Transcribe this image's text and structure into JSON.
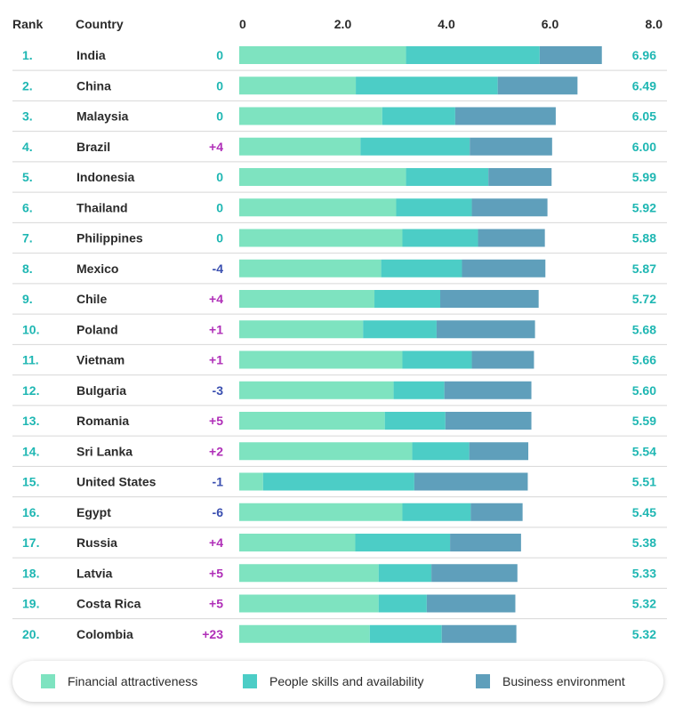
{
  "chart_data": {
    "type": "bar",
    "stacked": true,
    "orientation": "horizontal",
    "headers": {
      "rank": "Rank",
      "country": "Country"
    },
    "xlim": [
      0,
      8.0
    ],
    "x_ticks": [
      "0",
      "2.0",
      "4.0",
      "6.0",
      "8.0"
    ],
    "colors": {
      "financial": "#7ee3c0",
      "people": "#4ccdc6",
      "business": "#5f9fbb",
      "rank_text": "#1fb7b3",
      "score_text": "#1fb7b3",
      "change_positive": "#b02fb8",
      "change_negative": "#3a4fb0",
      "change_zero": "#1fb7b3"
    },
    "series": [
      {
        "name": "Financial attractiveness",
        "key": "financial"
      },
      {
        "name": "People skills and availability",
        "key": "people"
      },
      {
        "name": "Business environment",
        "key": "business"
      }
    ],
    "rows": [
      {
        "rank": "1.",
        "country": "India",
        "change": "0",
        "score": "6.96",
        "values": [
          3.22,
          2.58,
          1.2
        ]
      },
      {
        "rank": "2.",
        "country": "China",
        "change": "0",
        "score": "6.49",
        "values": [
          2.25,
          2.74,
          1.54
        ]
      },
      {
        "rank": "3.",
        "country": "Malaysia",
        "change": "0",
        "score": "6.05",
        "values": [
          2.76,
          1.41,
          1.94
        ]
      },
      {
        "rank": "4.",
        "country": "Brazil",
        "change": "+4",
        "score": "6.00",
        "values": [
          2.34,
          2.11,
          1.59
        ]
      },
      {
        "rank": "5.",
        "country": "Indonesia",
        "change": "0",
        "score": "5.99",
        "values": [
          3.22,
          1.59,
          1.22
        ]
      },
      {
        "rank": "6.",
        "country": "Thailand",
        "change": "0",
        "score": "5.92",
        "values": [
          3.03,
          1.46,
          1.46
        ]
      },
      {
        "rank": "7.",
        "country": "Philippines",
        "change": "0",
        "score": "5.88",
        "values": [
          3.15,
          1.46,
          1.29
        ]
      },
      {
        "rank": "8.",
        "country": "Mexico",
        "change": "-4",
        "score": "5.87",
        "values": [
          2.74,
          1.56,
          1.61
        ]
      },
      {
        "rank": "9.",
        "country": "Chile",
        "change": "+4",
        "score": "5.72",
        "values": [
          2.61,
          1.27,
          1.9
        ]
      },
      {
        "rank": "10.",
        "country": "Poland",
        "change": "+1",
        "score": "5.68",
        "values": [
          2.39,
          1.42,
          1.9
        ]
      },
      {
        "rank": "11.",
        "country": "Vietnam",
        "change": "+1",
        "score": "5.66",
        "values": [
          3.15,
          1.34,
          1.2
        ]
      },
      {
        "rank": "12.",
        "country": "Bulgaria",
        "change": "-3",
        "score": "5.60",
        "values": [
          2.98,
          0.98,
          1.68
        ]
      },
      {
        "rank": "13.",
        "country": "Romania",
        "change": "+5",
        "score": "5.59",
        "values": [
          2.81,
          1.17,
          1.66
        ]
      },
      {
        "rank": "14.",
        "country": "Sri Lanka",
        "change": "+2",
        "score": "5.54",
        "values": [
          3.34,
          1.1,
          1.14
        ]
      },
      {
        "rank": "15.",
        "country": "United States",
        "change": "-1",
        "score": "5.51",
        "values": [
          0.46,
          2.92,
          2.19
        ]
      },
      {
        "rank": "16.",
        "country": "Egypt",
        "change": "-6",
        "score": "5.45",
        "values": [
          3.15,
          1.32,
          1.0
        ]
      },
      {
        "rank": "17.",
        "country": "Russia",
        "change": "+4",
        "score": "5.38",
        "values": [
          2.24,
          1.83,
          1.37
        ]
      },
      {
        "rank": "18.",
        "country": "Latvia",
        "change": "+5",
        "score": "5.33",
        "values": [
          2.69,
          1.02,
          1.66
        ]
      },
      {
        "rank": "19.",
        "country": "Costa Rica",
        "change": "+5",
        "score": "5.32",
        "values": [
          2.69,
          0.93,
          1.71
        ]
      },
      {
        "rank": "20.",
        "country": "Colombia",
        "change": "+23",
        "score": "5.32",
        "values": [
          2.52,
          1.39,
          1.44
        ]
      }
    ]
  }
}
